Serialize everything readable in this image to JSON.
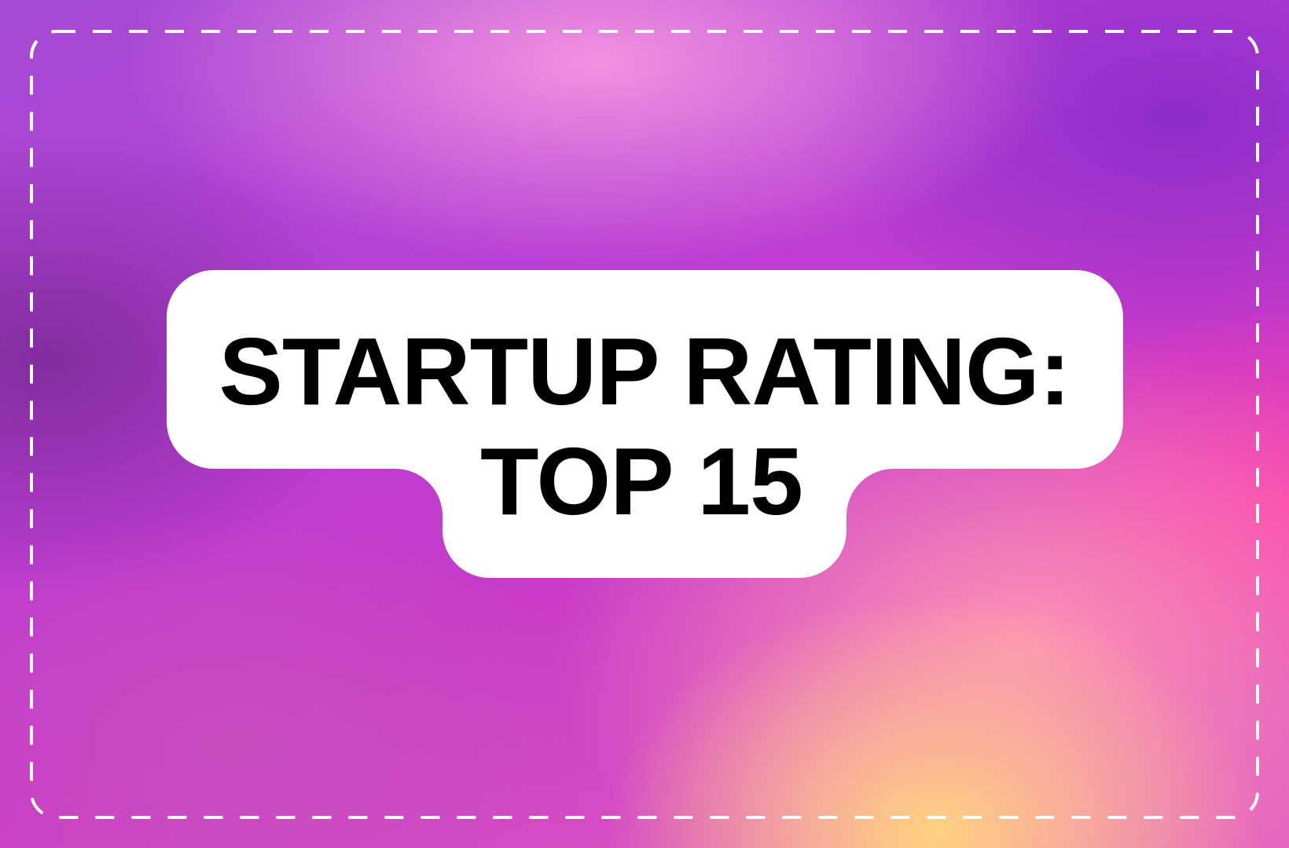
{
  "banner": {
    "title_line1": "STARTUP RATING:",
    "title_line2": "TOP 15"
  },
  "colors": {
    "label_background": "#ffffff",
    "text": "#000000",
    "dashed_border": "#ffffff"
  }
}
